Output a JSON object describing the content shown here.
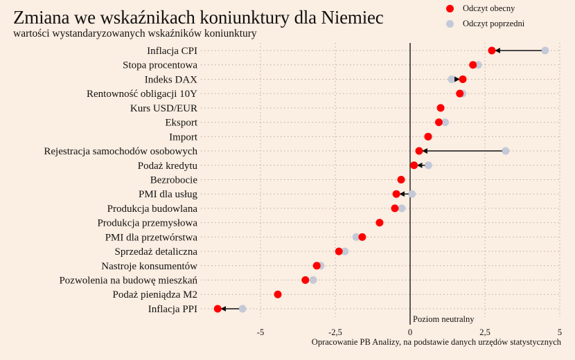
{
  "chart_data": {
    "type": "dot-arrow",
    "title": "Zmiana we wskaźnikach koniunktury dla Niemiec",
    "subtitle": "wartości wystandaryzowanych wskaźników koniunktury",
    "legend": {
      "placement": "top-right",
      "entries": [
        {
          "name": "Odczyt obecny",
          "color": "#ff0000"
        },
        {
          "name": "Odczyt poprzedni",
          "color": "#c3c9d8"
        }
      ]
    },
    "categories": [
      "Inflacja CPI",
      "Stopa procentowa",
      "Indeks DAX",
      "Rentowność obligacji 10Y",
      "Kurs USD/EUR",
      "Eksport",
      "Import",
      "Rejestracja samochodów osobowych",
      "Podaż kredytu",
      "Bezrobocie",
      "PMI dla usług",
      "Produkcja budowlana",
      "Produkcja przemysłowa",
      "PMI dla przetwórstwa",
      "Sprzedaż detaliczna",
      "Nastroje konsumentów",
      "Pozwolenia na budowę mieszkań",
      "Podaż pieniądza M2",
      "Inflacja PPI"
    ],
    "series": [
      {
        "name": "Odczyt obecny",
        "values": [
          2.73,
          2.1,
          1.76,
          1.66,
          1.02,
          0.96,
          0.6,
          0.3,
          0.13,
          -0.3,
          -0.46,
          -0.51,
          -1.02,
          -1.6,
          -2.38,
          -3.12,
          -3.5,
          -4.42,
          -6.43
        ]
      },
      {
        "name": "Odczyt poprzedni",
        "values": [
          4.51,
          2.27,
          1.39,
          1.75,
          1.02,
          1.17,
          0.62,
          3.19,
          0.61,
          -0.3,
          0.06,
          -0.28,
          -1.02,
          -1.8,
          -2.18,
          -2.99,
          -3.24,
          -4.42,
          -5.6
        ]
      }
    ],
    "xticks": [
      -5,
      -2.5,
      0,
      2.5,
      5
    ],
    "xtick_labels": [
      "-5",
      "-2,5",
      "0",
      "2,5",
      "5"
    ],
    "xlim": [
      -6.7,
      5.0
    ],
    "grid": true,
    "reference_line": {
      "value": 0,
      "label": "Poziom neutralny"
    },
    "source_note": "Opracowanie PB Analizy, na podstawie danych urzędów statystycznych",
    "arrow_threshold": 0.3
  }
}
